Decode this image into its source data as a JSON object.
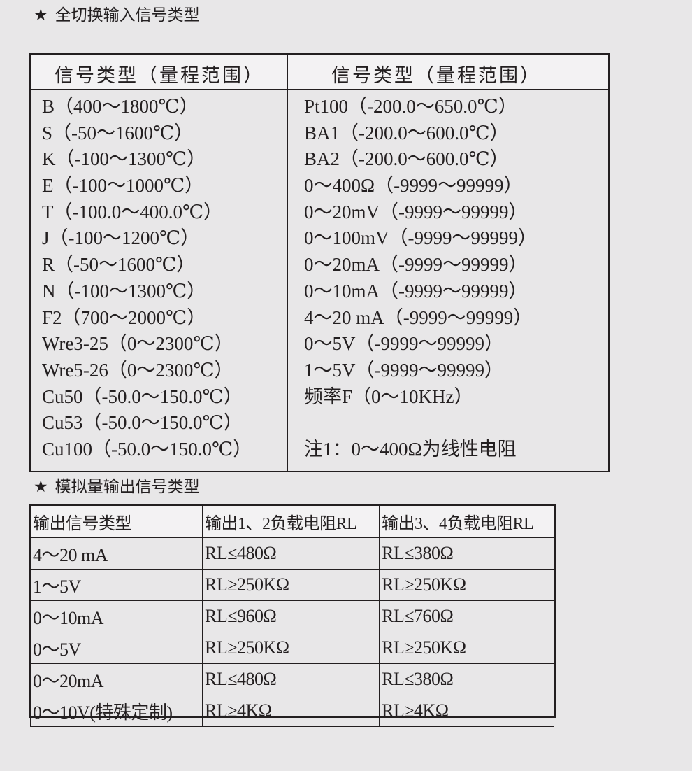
{
  "section1": {
    "title": "全切换输入信号类型",
    "star": "★",
    "headers": [
      "信号类型（量程范围）",
      "信号类型（量程范围）"
    ],
    "left": [
      "B（400～1800℃）",
      "S（-50～1600℃）",
      "K（-100～1300℃）",
      "E（-100～1000℃）",
      "T（-100.0～400.0℃）",
      "J（-100～1200℃）",
      "R（-50～1600℃）",
      "N（-100～1300℃）",
      "F2（700～2000℃）",
      "Wre3-25（0～2300℃）",
      "Wre5-26（0～2300℃）",
      "Cu50（-50.0～150.0℃）",
      "Cu53（-50.0～150.0℃）",
      "Cu100（-50.0～150.0℃）"
    ],
    "right": [
      "Pt100（-200.0～650.0℃）",
      "BA1（-200.0～600.0℃）",
      "BA2（-200.0～600.0℃）",
      "0～400Ω（-9999～99999）",
      "0～20mV（-9999～99999）",
      "0～100mV（-9999～99999）",
      "0～20mA（-9999～99999）",
      "0～10mA（-9999～99999）",
      "4～20 mA（-9999～99999）",
      "0～5V（-9999～99999）",
      "1～5V（-9999～99999）",
      "频率F（0～10KHz）",
      "",
      "注1：0～400Ω为线性电阻"
    ]
  },
  "section2": {
    "title": "模拟量输出信号类型",
    "star": "★",
    "headers": [
      "输出信号类型",
      "输出1、2负载电阻RL",
      "输出3、4负载电阻RL"
    ],
    "rows": [
      [
        "4～20 mA",
        "RL≤480Ω",
        "RL≤380Ω"
      ],
      [
        "1～5V",
        "RL≥250KΩ",
        "RL≥250KΩ"
      ],
      [
        "0～10mA",
        "RL≤960Ω",
        "RL≤760Ω"
      ],
      [
        "0～5V",
        "RL≥250KΩ",
        "RL≥250KΩ"
      ],
      [
        "0～20mA",
        "RL≤480Ω",
        "RL≤380Ω"
      ],
      [
        "0～10V(特殊定制)",
        "RL≥4KΩ",
        "RL≥4KΩ"
      ]
    ]
  }
}
